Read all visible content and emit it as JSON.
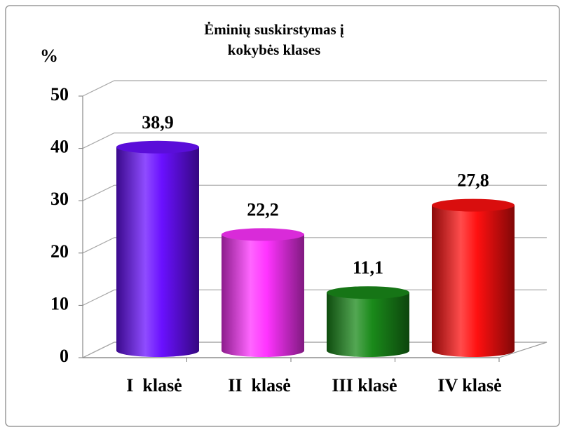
{
  "chart_data": {
    "type": "bar3d",
    "title": "Ėminių suskirstymas į kokybės klases",
    "y_label": "%",
    "categories": [
      "I  klasė",
      "II  klasė",
      "III klasė",
      "IV klasė"
    ],
    "values": [
      38.9,
      22.2,
      11.1,
      27.8
    ],
    "value_labels": [
      "38,9",
      "22,2",
      "11,1",
      "27,8"
    ],
    "colors": [
      "#6a10ff",
      "#ff33ff",
      "#1a8a1a",
      "#ff1010"
    ],
    "ylim": [
      0,
      50
    ],
    "yticks": [
      0,
      10,
      20,
      30,
      40,
      50
    ],
    "grid": true
  }
}
